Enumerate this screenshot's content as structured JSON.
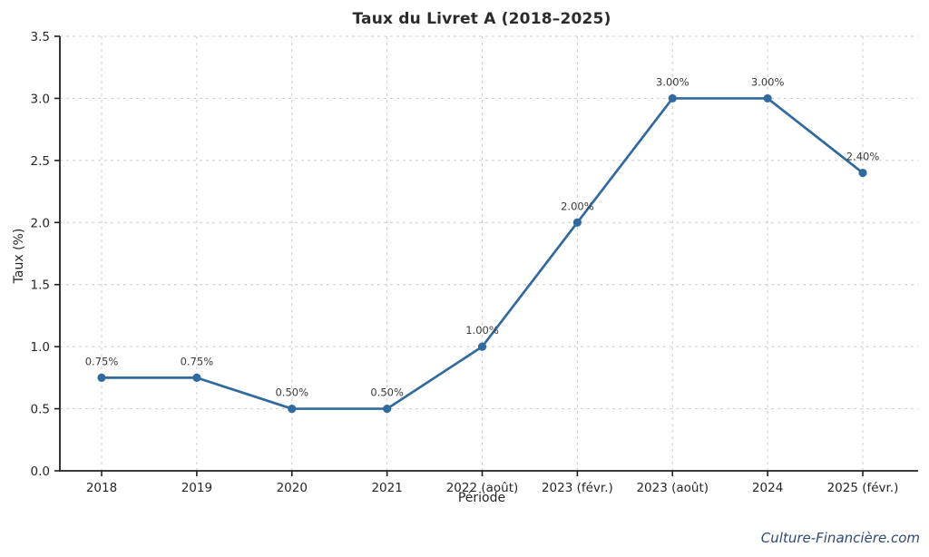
{
  "chart_data": {
    "type": "line",
    "title": "Taux du Livret A (2018–2025)",
    "xlabel": "Période",
    "ylabel": "Taux (%)",
    "categories": [
      "2018",
      "2019",
      "2020",
      "2021",
      "2022 (août)",
      "2023 (févr.)",
      "2023 (août)",
      "2024",
      "2025 (févr.)"
    ],
    "values": [
      0.75,
      0.75,
      0.5,
      0.5,
      1.0,
      2.0,
      3.0,
      3.0,
      2.4
    ],
    "point_labels": [
      "0.75%",
      "0.75%",
      "0.50%",
      "0.50%",
      "1.00%",
      "2.00%",
      "3.00%",
      "3.00%",
      "2.40%"
    ],
    "ylim": [
      0.0,
      3.5
    ],
    "yticks": [
      0.0,
      0.5,
      1.0,
      1.5,
      2.0,
      2.5,
      3.0,
      3.5
    ],
    "ytick_labels": [
      "0.0",
      "0.5",
      "1.0",
      "1.5",
      "2.0",
      "2.5",
      "3.0",
      "3.5"
    ],
    "grid": "both, dashed",
    "legend": "none",
    "line_color": "#306a9e",
    "marker": "circle",
    "marker_color": "#306a9e"
  },
  "watermark": {
    "text": "Culture-Financière.com",
    "color": "#2e4a76"
  },
  "style": {
    "grid_color": "#cccccc",
    "spine_color": "#1f1f1f",
    "tick_label_color": "#262626",
    "point_label_color": "#3a3a3a"
  }
}
